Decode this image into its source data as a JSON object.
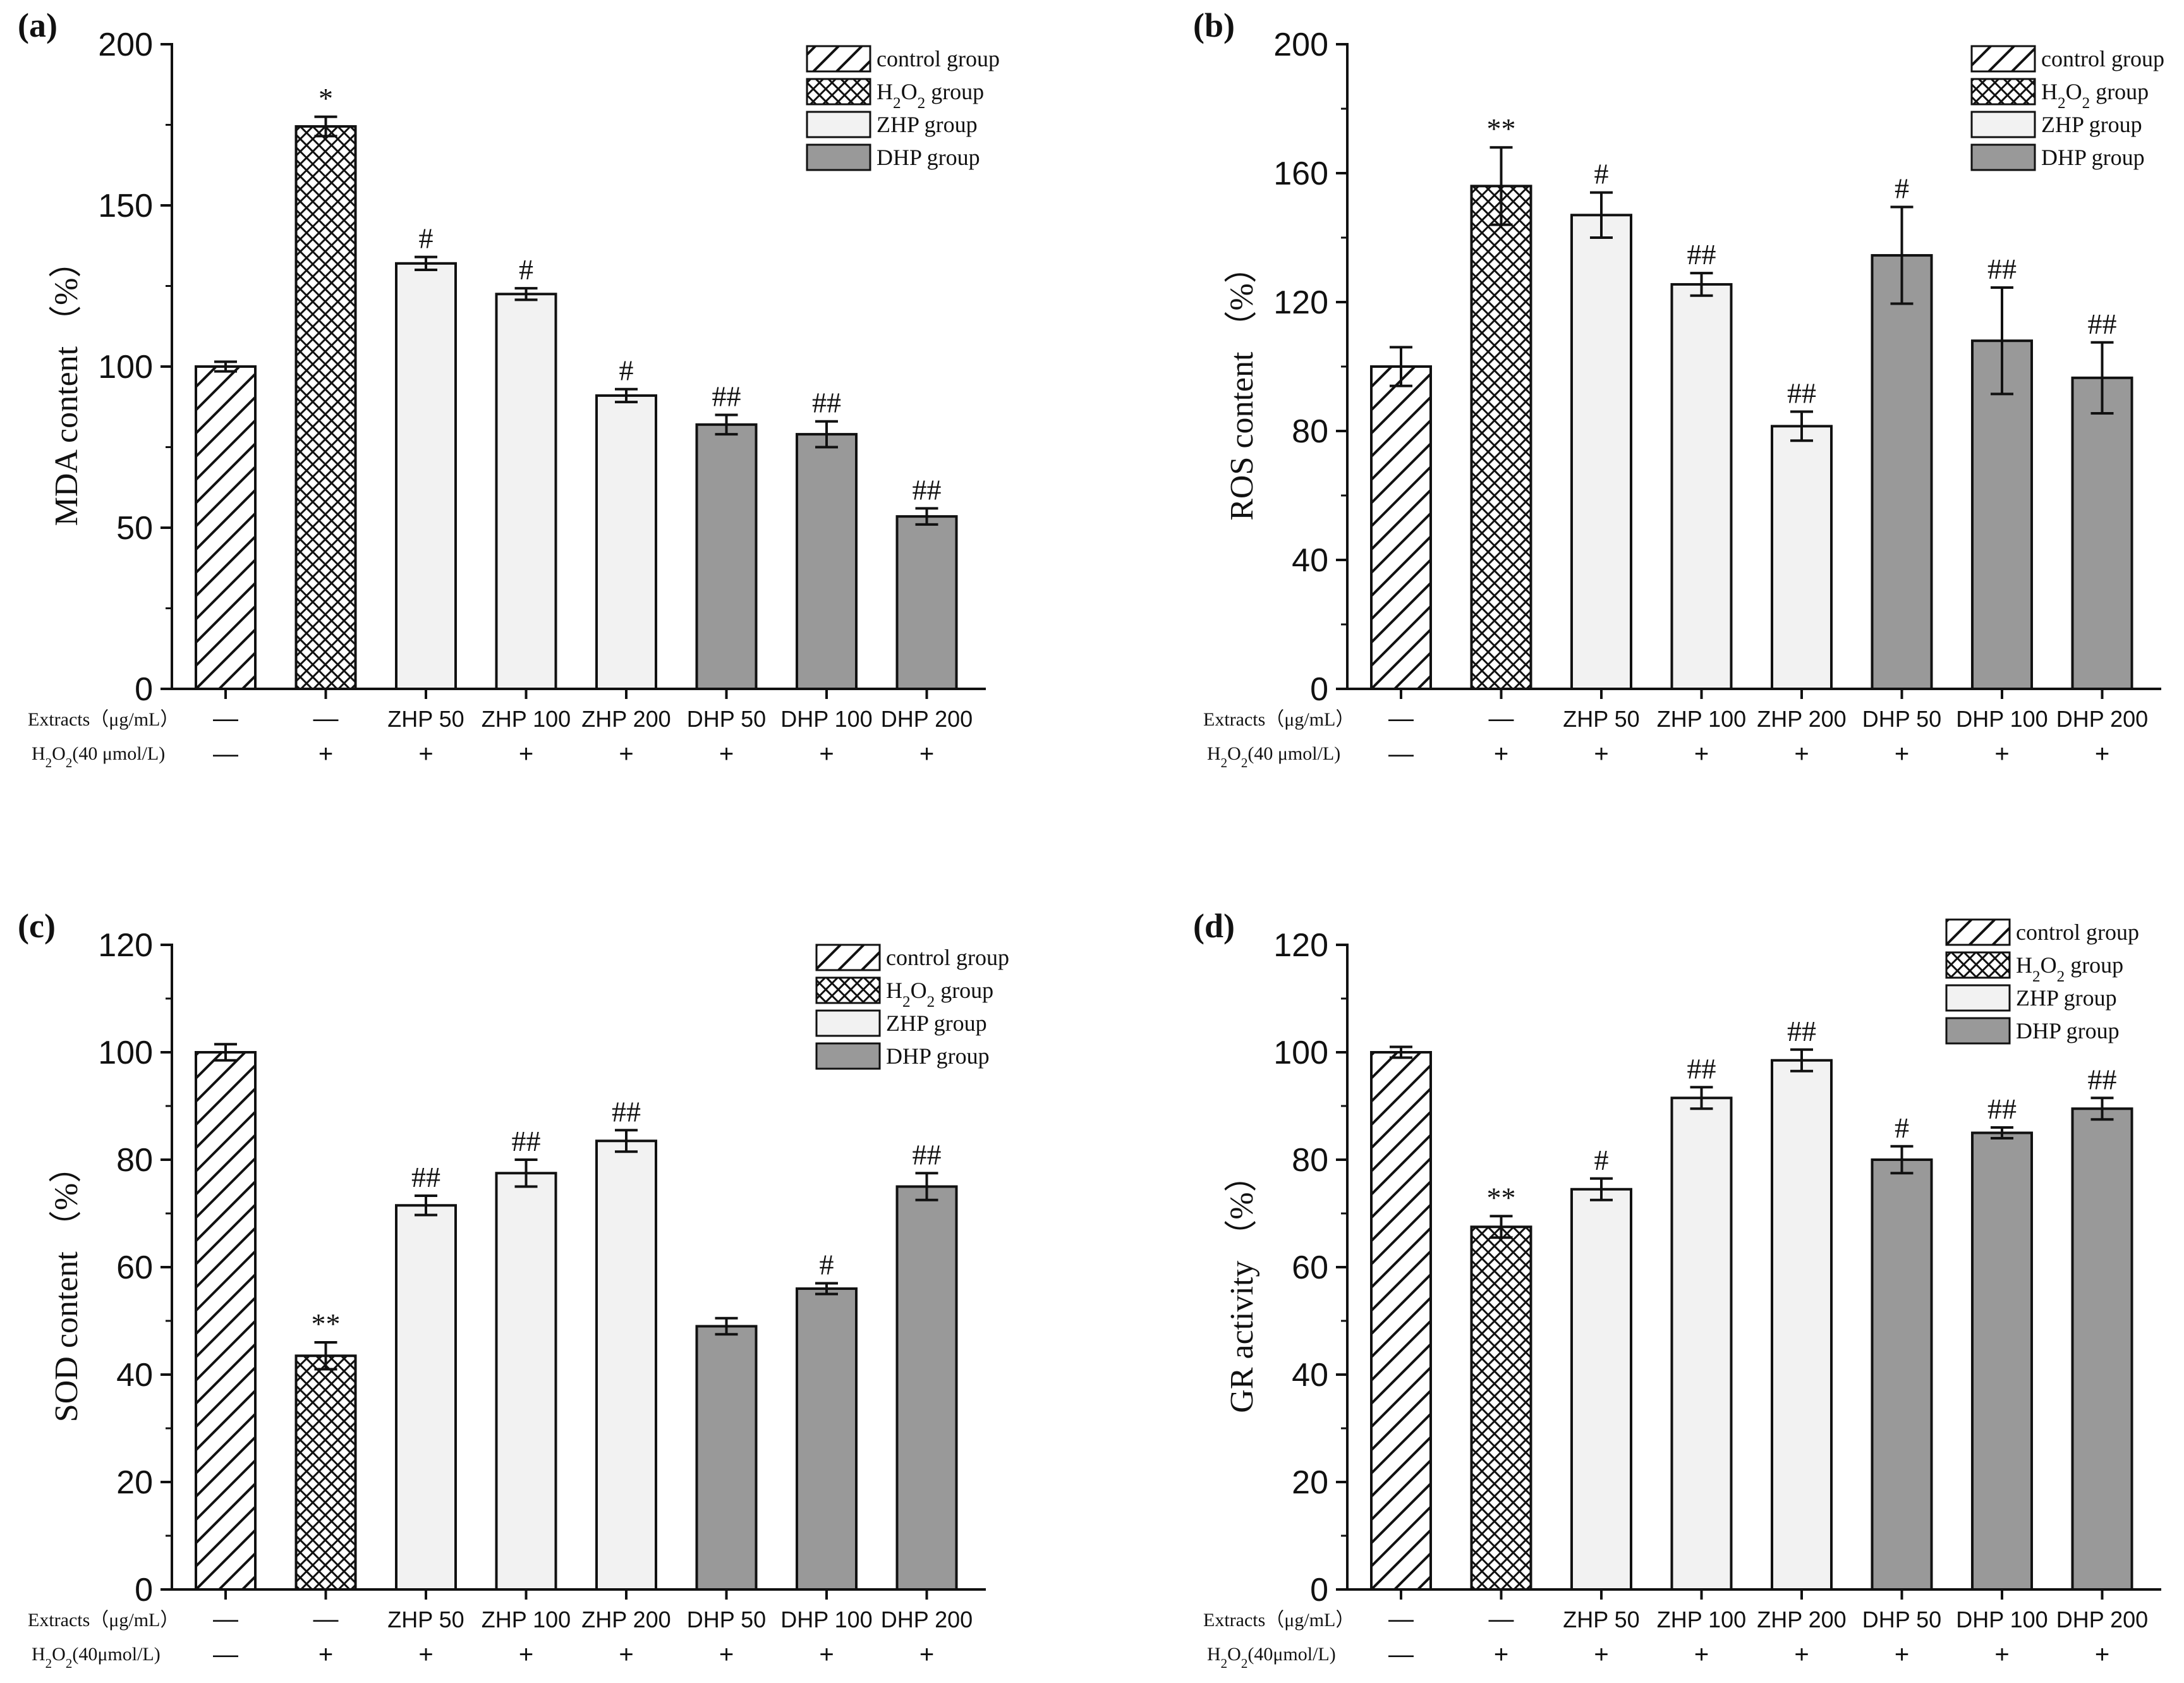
{
  "figure": {
    "legend": {
      "entries": [
        {
          "text": "control group",
          "pattern": "hatch"
        },
        {
          "text": "H2O2  group",
          "pattern": "cross"
        },
        {
          "text": "ZHP   group",
          "pattern": "light"
        },
        {
          "text": "DHP   group",
          "pattern": "dark"
        }
      ]
    },
    "row_labels": {
      "extracts": "Extracts（μg/mL）",
      "h2o2_a": "H2O2(40 μmol/L)",
      "h2o2_c": "H2O2(40μmol/L)"
    },
    "categories": [
      "—",
      "—",
      "ZHP 50",
      "ZHP 100",
      "ZHP 200",
      "DHP 50",
      "DHP 100",
      "DHP 200"
    ],
    "h2o2_marks": [
      "—",
      "+",
      "+",
      "+",
      "+",
      "+",
      "+",
      "+"
    ],
    "colors": {
      "light": "#f2f2f2",
      "dark": "#999999",
      "stroke": "#111111"
    }
  },
  "chart_data": [
    {
      "panel": "(a)",
      "type": "bar",
      "ylabel": "MDA content （%）",
      "ylim": [
        0,
        200
      ],
      "yticks": [
        0,
        50,
        100,
        150,
        200
      ],
      "categories": [
        "—",
        "—",
        "ZHP 50",
        "ZHP 100",
        "ZHP 200",
        "DHP 50",
        "DHP 100",
        "DHP 200"
      ],
      "values": [
        100,
        174.5,
        132,
        122.5,
        91,
        82,
        79,
        53.5
      ],
      "errors": [
        1.5,
        3,
        2,
        1.8,
        2,
        3,
        4,
        2.5
      ],
      "significance": [
        "",
        "*",
        "#",
        "#",
        "#",
        "##",
        "##",
        "##"
      ],
      "h2o2_label": "H2O2(40 μmol/L)"
    },
    {
      "panel": "(b)",
      "type": "bar",
      "ylabel": "ROS content （%）",
      "ylim": [
        0,
        200
      ],
      "yticks": [
        0,
        40,
        80,
        120,
        160,
        200
      ],
      "categories": [
        "—",
        "—",
        "ZHP 50",
        "ZHP 100",
        "ZHP 200",
        "DHP 50",
        "DHP 100",
        "DHP 200"
      ],
      "values": [
        100,
        156,
        147,
        125.5,
        81.5,
        134.5,
        108,
        96.5
      ],
      "errors": [
        6,
        12,
        7,
        3.5,
        4.5,
        15,
        16.5,
        11
      ],
      "significance": [
        "",
        "**",
        "#",
        "##",
        "##",
        "#",
        "##",
        "##"
      ],
      "h2o2_label": "H2O2(40 μmol/L)"
    },
    {
      "panel": "(c)",
      "type": "bar",
      "ylabel": "SOD content （%）",
      "ylim": [
        0,
        120
      ],
      "yticks": [
        0,
        20,
        40,
        60,
        80,
        100,
        120
      ],
      "categories": [
        "—",
        "—",
        "ZHP 50",
        "ZHP 100",
        "ZHP 200",
        "DHP 50",
        "DHP 100",
        "DHP 200"
      ],
      "values": [
        100,
        43.5,
        71.5,
        77.5,
        83.5,
        49,
        56,
        75
      ],
      "errors": [
        1.5,
        2.5,
        1.8,
        2.5,
        2,
        1.5,
        1,
        2.5
      ],
      "significance": [
        "",
        "**",
        "##",
        "##",
        "##",
        "",
        "#",
        "##"
      ],
      "h2o2_label": "H2O2(40μmol/L)"
    },
    {
      "panel": "(d)",
      "type": "bar",
      "ylabel": "GR activity （%）",
      "ylim": [
        0,
        120
      ],
      "yticks": [
        0,
        20,
        40,
        60,
        80,
        100,
        120
      ],
      "categories": [
        "—",
        "—",
        "ZHP 50",
        "ZHP 100",
        "ZHP 200",
        "DHP 50",
        "DHP 100",
        "DHP 200"
      ],
      "values": [
        100,
        67.5,
        74.5,
        91.5,
        98.5,
        80,
        85,
        89.5
      ],
      "errors": [
        1,
        2,
        2,
        2,
        2,
        2.5,
        1,
        2
      ],
      "significance": [
        "",
        "**",
        "#",
        "##",
        "##",
        "#",
        "##",
        "##"
      ],
      "h2o2_label": "H2O2(40μmol/L)"
    }
  ]
}
